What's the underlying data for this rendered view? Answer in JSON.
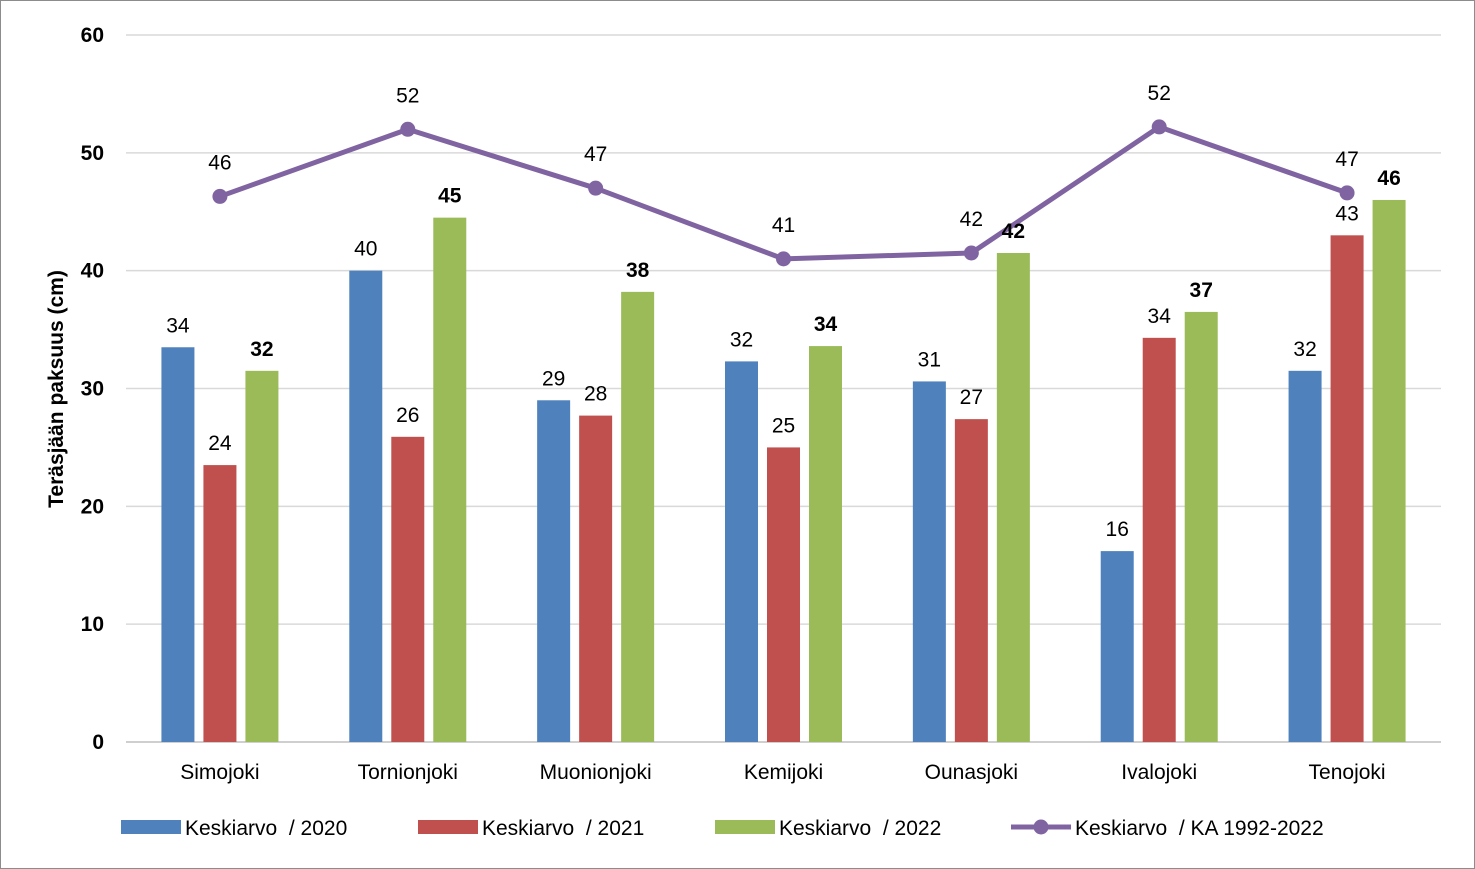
{
  "chart_data": {
    "type": "bar",
    "title": "",
    "xlabel": "",
    "ylabel": "Teräsjään paksuus (cm)",
    "ylim": [
      0,
      60
    ],
    "yticks": [
      "0",
      "10",
      "20",
      "30",
      "40",
      "50",
      "60"
    ],
    "grid": true,
    "legend_position": "bottom",
    "categories": [
      "Simojoki",
      "Tornionjoki",
      "Muonionjoki",
      "Kemijoki",
      "Ounasjoki",
      "Ivalojoki",
      "Tenojoki"
    ],
    "series": [
      {
        "name": "Keskiarvo  / 2020",
        "kind": "bar",
        "color": "#4f81bd",
        "values": [
          33.5,
          40,
          29,
          32.3,
          30.6,
          16.2,
          31.5
        ],
        "labels": [
          "34",
          "40",
          "29",
          "32",
          "31",
          "16",
          "32"
        ],
        "label_bold": false
      },
      {
        "name": "Keskiarvo  / 2021",
        "kind": "bar",
        "color": "#c0504d",
        "values": [
          23.5,
          25.9,
          27.7,
          25,
          27.4,
          34.3,
          43
        ],
        "labels": [
          "24",
          "26",
          "28",
          "25",
          "27",
          "34",
          "43"
        ],
        "label_bold": false
      },
      {
        "name": "Keskiarvo  / 2022",
        "kind": "bar",
        "color": "#9bbb59",
        "values": [
          31.5,
          44.5,
          38.2,
          33.6,
          41.5,
          36.5,
          46
        ],
        "labels": [
          "32",
          "45",
          "38",
          "34",
          "42",
          "37",
          "46"
        ],
        "label_bold": true
      },
      {
        "name": "Keskiarvo  / KA 1992-2022",
        "kind": "line",
        "color": "#8064a2",
        "values": [
          46.3,
          52,
          47,
          41,
          41.5,
          52.2,
          46.6
        ],
        "labels": [
          "46",
          "52",
          "47",
          "41",
          "42",
          "52",
          "47"
        ],
        "label_bold": false
      }
    ]
  }
}
